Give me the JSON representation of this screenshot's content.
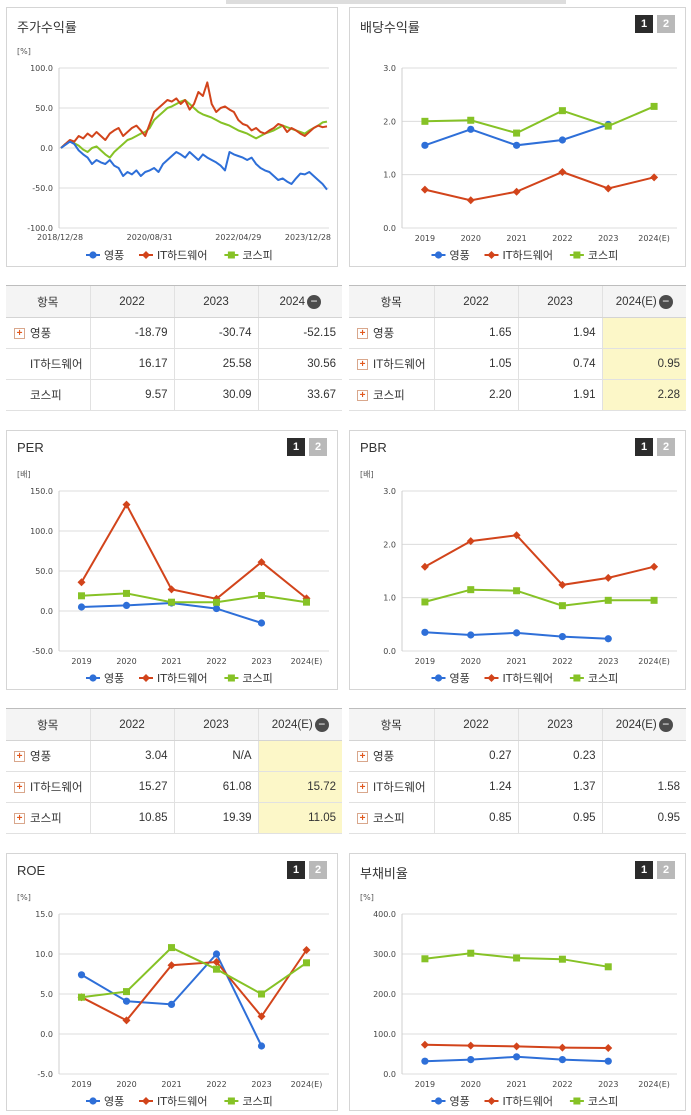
{
  "legend": {
    "yp": "영풍",
    "it": "IT하드웨어",
    "ks": "코스피"
  },
  "colors": {
    "yp": "#2e6fd8",
    "it": "#d2441b",
    "ks": "#86c226"
  },
  "tabs": {
    "one": "1",
    "two": "2"
  },
  "price": {
    "title": "주가수익률",
    "unit": "[%]",
    "chart_data": {
      "type": "line",
      "ylim": [
        -100,
        100
      ],
      "yticks": [
        "100.0",
        "50.0",
        "0.0",
        "-50.0",
        "-100.0"
      ],
      "xticks": [
        "2018/12/28",
        "2020/08/31",
        "2022/04/29",
        "2023/12/28"
      ],
      "series": [
        {
          "name": "영풍",
          "key": "yp",
          "values": [
            0,
            4,
            8,
            5,
            -3,
            -8,
            -12,
            -20,
            -15,
            -18,
            -20,
            -15,
            -22,
            -25,
            -35,
            -30,
            -33,
            -28,
            -35,
            -30,
            -28,
            -25,
            -30,
            -20,
            -15,
            -10,
            -5,
            -8,
            -12,
            -5,
            -10,
            -15,
            -8,
            -12,
            -15,
            -18,
            -22,
            -28,
            -5,
            -8,
            -10,
            -12,
            -15,
            -12,
            -20,
            -25,
            -28,
            -30,
            -35,
            -40,
            -38,
            -42,
            -45,
            -38,
            -32,
            -33,
            -30,
            -35,
            -40,
            -45,
            -52
          ]
        },
        {
          "name": "IT하드웨어",
          "key": "it",
          "values": [
            0,
            5,
            10,
            8,
            15,
            12,
            18,
            14,
            20,
            15,
            10,
            18,
            22,
            25,
            15,
            20,
            25,
            28,
            22,
            15,
            30,
            45,
            50,
            55,
            60,
            58,
            62,
            55,
            60,
            48,
            55,
            70,
            65,
            82,
            55,
            45,
            50,
            52,
            48,
            45,
            35,
            30,
            28,
            22,
            25,
            20,
            18,
            22,
            25,
            30,
            28,
            20,
            25,
            22,
            18,
            15,
            20,
            25,
            28,
            26,
            27
          ]
        },
        {
          "name": "코스피",
          "key": "ks",
          "values": [
            0,
            5,
            8,
            6,
            3,
            -2,
            -5,
            0,
            2,
            -3,
            -8,
            -12,
            -5,
            0,
            5,
            10,
            12,
            15,
            18,
            20,
            25,
            35,
            40,
            45,
            50,
            52,
            55,
            58,
            60,
            55,
            50,
            45,
            42,
            40,
            38,
            35,
            32,
            30,
            28,
            25,
            22,
            20,
            18,
            15,
            12,
            15,
            18,
            20,
            22,
            25,
            28,
            26,
            24,
            22,
            20,
            18,
            22,
            25,
            28,
            32,
            33
          ]
        }
      ]
    }
  },
  "dividend": {
    "title": "배당수익률",
    "chart_data": {
      "type": "line",
      "ylim": [
        0,
        3
      ],
      "yticks": [
        "3.0",
        "2.0",
        "1.0",
        "0.0"
      ],
      "categories": [
        "2019",
        "2020",
        "2021",
        "2022",
        "2023",
        "2024(E)"
      ],
      "series": [
        {
          "name": "영풍",
          "key": "yp",
          "values": [
            1.55,
            1.85,
            1.55,
            1.65,
            1.94,
            null
          ]
        },
        {
          "name": "IT하드웨어",
          "key": "it",
          "values": [
            0.72,
            0.52,
            0.68,
            1.05,
            0.74,
            0.95
          ]
        },
        {
          "name": "코스피",
          "key": "ks",
          "values": [
            2.0,
            2.02,
            1.78,
            2.2,
            1.91,
            2.28
          ]
        }
      ]
    }
  },
  "price_table": {
    "header": [
      "항목",
      "2022",
      "2023",
      "2024"
    ],
    "rows": [
      {
        "label": "영풍",
        "values": [
          "-18.79",
          "-30.74",
          "-52.15"
        ]
      },
      {
        "label": "IT하드웨어",
        "values": [
          "16.17",
          "25.58",
          "30.56"
        ]
      },
      {
        "label": "코스피",
        "values": [
          "9.57",
          "30.09",
          "33.67"
        ]
      }
    ]
  },
  "dividend_table": {
    "header": [
      "항목",
      "2022",
      "2023",
      "2024(E)"
    ],
    "rows": [
      {
        "label": "영풍",
        "values": [
          "1.65",
          "1.94",
          ""
        ]
      },
      {
        "label": "IT하드웨어",
        "values": [
          "1.05",
          "0.74",
          "0.95"
        ]
      },
      {
        "label": "코스피",
        "values": [
          "2.20",
          "1.91",
          "2.28"
        ]
      }
    ]
  },
  "per": {
    "title": "PER",
    "unit": "[배]",
    "chart_data": {
      "type": "line",
      "ylim": [
        -50,
        150
      ],
      "yticks": [
        "150.0",
        "100.0",
        "50.0",
        "0.0",
        "-50.0"
      ],
      "categories": [
        "2019",
        "2020",
        "2021",
        "2022",
        "2023",
        "2024(E)"
      ],
      "series": [
        {
          "name": "영풍",
          "key": "yp",
          "values": [
            5,
            7,
            10,
            3.04,
            -15,
            null
          ]
        },
        {
          "name": "IT하드웨어",
          "key": "it",
          "values": [
            36,
            133,
            27,
            15.27,
            61.08,
            15.72
          ]
        },
        {
          "name": "코스피",
          "key": "ks",
          "values": [
            19,
            22,
            11,
            10.85,
            19.39,
            11.05
          ]
        }
      ]
    }
  },
  "pbr": {
    "title": "PBR",
    "unit": "[배]",
    "chart_data": {
      "type": "line",
      "ylim": [
        0,
        3
      ],
      "yticks": [
        "3.0",
        "2.0",
        "1.0",
        "0.0"
      ],
      "categories": [
        "2019",
        "2020",
        "2021",
        "2022",
        "2023",
        "2024(E)"
      ],
      "series": [
        {
          "name": "영풍",
          "key": "yp",
          "values": [
            0.35,
            0.3,
            0.34,
            0.27,
            0.23,
            null
          ]
        },
        {
          "name": "IT하드웨어",
          "key": "it",
          "values": [
            1.58,
            2.06,
            2.17,
            1.24,
            1.37,
            1.58
          ]
        },
        {
          "name": "코스피",
          "key": "ks",
          "values": [
            0.92,
            1.15,
            1.13,
            0.85,
            0.95,
            0.95
          ]
        }
      ]
    }
  },
  "per_table": {
    "header": [
      "항목",
      "2022",
      "2023",
      "2024(E)"
    ],
    "rows": [
      {
        "label": "영풍",
        "values": [
          "3.04",
          "N/A",
          ""
        ]
      },
      {
        "label": "IT하드웨어",
        "values": [
          "15.27",
          "61.08",
          "15.72"
        ]
      },
      {
        "label": "코스피",
        "values": [
          "10.85",
          "19.39",
          "11.05"
        ]
      }
    ]
  },
  "pbr_table": {
    "header": [
      "항목",
      "2022",
      "2023",
      "2024(E)"
    ],
    "rows": [
      {
        "label": "영풍",
        "values": [
          "0.27",
          "0.23",
          ""
        ]
      },
      {
        "label": "IT하드웨어",
        "values": [
          "1.24",
          "1.37",
          "1.58"
        ]
      },
      {
        "label": "코스피",
        "values": [
          "0.85",
          "0.95",
          "0.95"
        ]
      }
    ]
  },
  "roe": {
    "title": "ROE",
    "unit": "[%]",
    "chart_data": {
      "type": "line",
      "ylim": [
        -5,
        15
      ],
      "yticks": [
        "15.0",
        "10.0",
        "5.0",
        "0.0",
        "-5.0"
      ],
      "categories": [
        "2019",
        "2020",
        "2021",
        "2022",
        "2023",
        "2024(E)"
      ],
      "series": [
        {
          "name": "영풍",
          "key": "yp",
          "values": [
            7.4,
            4.1,
            3.7,
            10.0,
            -1.5,
            null
          ]
        },
        {
          "name": "IT하드웨어",
          "key": "it",
          "values": [
            4.6,
            1.7,
            8.6,
            9.0,
            2.2,
            10.5
          ]
        },
        {
          "name": "코스피",
          "key": "ks",
          "values": [
            4.6,
            5.3,
            10.8,
            8.1,
            5.0,
            8.9
          ]
        }
      ]
    }
  },
  "debt": {
    "title": "부채비율",
    "unit": "[%]",
    "chart_data": {
      "type": "line",
      "ylim": [
        0,
        400
      ],
      "yticks": [
        "400.0",
        "300.0",
        "200.0",
        "100.0",
        "0.0"
      ],
      "categories": [
        "2019",
        "2020",
        "2021",
        "2022",
        "2023",
        "2024(E)"
      ],
      "series": [
        {
          "name": "영풍",
          "key": "yp",
          "values": [
            32,
            36,
            43,
            36,
            32,
            null
          ]
        },
        {
          "name": "IT하드웨어",
          "key": "it",
          "values": [
            73,
            71,
            69,
            66,
            65,
            null
          ]
        },
        {
          "name": "코스피",
          "key": "ks",
          "values": [
            288,
            302,
            290,
            287,
            268,
            null
          ]
        }
      ]
    }
  }
}
